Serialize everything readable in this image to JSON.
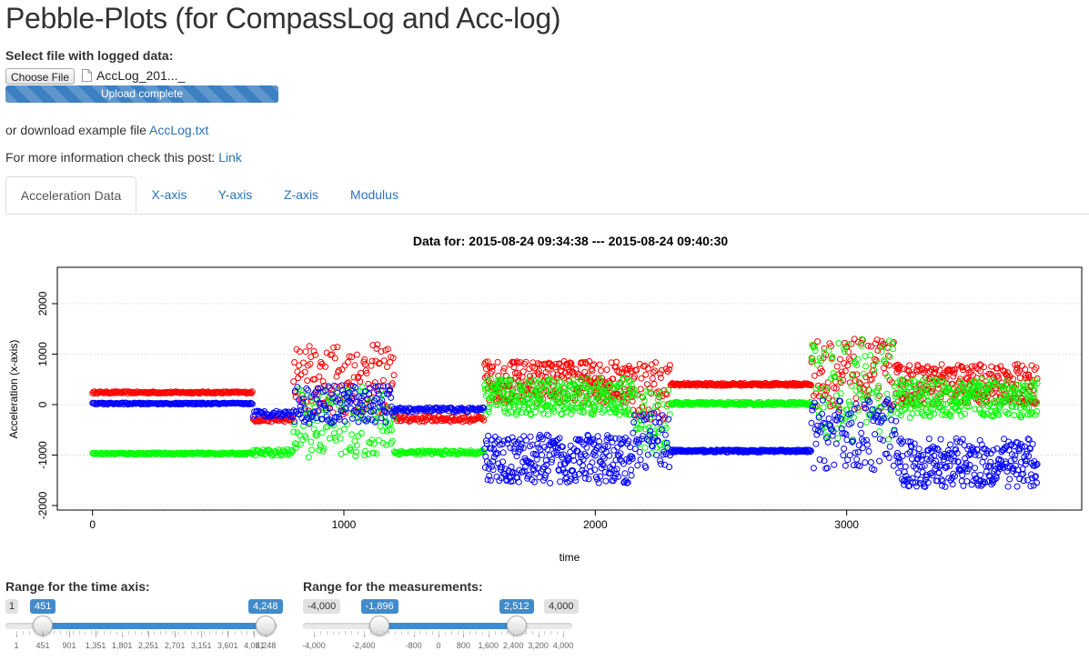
{
  "page": {
    "title": "Pebble-Plots (for CompassLog and Acc-log)",
    "file_label": "Select file with logged data:",
    "choose_button": "Choose File",
    "file_name": "AccLog_201..._",
    "progress_text": "Upload complete",
    "progress_fraction": 1.0,
    "download_prefix": "or download example file ",
    "download_link": "AccLog.txt",
    "info_prefix": "For more information check this post: ",
    "info_link": "Link"
  },
  "tabs": [
    {
      "label": "Acceleration Data",
      "active": true
    },
    {
      "label": "X-axis",
      "active": false
    },
    {
      "label": "Y-axis",
      "active": false
    },
    {
      "label": "Z-axis",
      "active": false
    },
    {
      "label": "Modulus",
      "active": false
    }
  ],
  "chart_data": {
    "type": "scatter",
    "title": "Data for: 2015-08-24 09:34:38 --- 2015-08-24 09:40:30",
    "xlabel": "time",
    "ylabel": "Acceleration (x-axis)",
    "xlim": [
      -140,
      3935
    ],
    "ylim": [
      -2090,
      2720
    ],
    "xticks": [
      0,
      1000,
      2000,
      3000
    ],
    "yticks": [
      -2000,
      -1000,
      0,
      1000,
      2000
    ],
    "grid": true,
    "series": [
      {
        "color": "#ff0000",
        "segments": [
          {
            "x": [
              0,
              640
            ],
            "y": [
              240,
              240
            ],
            "spread": 18,
            "step": 4
          },
          {
            "x": [
              640,
              800
            ],
            "y": [
              -300,
              -300
            ],
            "spread": 40,
            "step": 4
          },
          {
            "x": [
              800,
              1200
            ],
            "y": [
              500,
              500
            ],
            "spread": 700,
            "step": 3
          },
          {
            "x": [
              1200,
              1560
            ],
            "y": [
              -280,
              -280
            ],
            "spread": 60,
            "step": 4
          },
          {
            "x": [
              1560,
              2150
            ],
            "y": [
              450,
              450
            ],
            "spread": 420,
            "step": 2
          },
          {
            "x": [
              2150,
              2300
            ],
            "y": [
              300,
              300
            ],
            "spread": 600,
            "step": 3
          },
          {
            "x": [
              2300,
              2860
            ],
            "y": [
              400,
              400
            ],
            "spread": 25,
            "step": 3
          },
          {
            "x": [
              2860,
              3200
            ],
            "y": [
              600,
              600
            ],
            "spread": 700,
            "step": 3
          },
          {
            "x": [
              3200,
              3760
            ],
            "y": [
              400,
              400
            ],
            "spread": 400,
            "step": 2
          }
        ]
      },
      {
        "color": "#00ff00",
        "segments": [
          {
            "x": [
              0,
              640
            ],
            "y": [
              -970,
              -970
            ],
            "spread": 18,
            "step": 4
          },
          {
            "x": [
              640,
              800
            ],
            "y": [
              -950,
              -950
            ],
            "spread": 60,
            "step": 4
          },
          {
            "x": [
              800,
              1200
            ],
            "y": [
              -350,
              -350
            ],
            "spread": 700,
            "step": 3
          },
          {
            "x": [
              1200,
              1560
            ],
            "y": [
              -950,
              -950
            ],
            "spread": 40,
            "step": 4
          },
          {
            "x": [
              1560,
              2150
            ],
            "y": [
              150,
              150
            ],
            "spread": 360,
            "step": 2
          },
          {
            "x": [
              2150,
              2300
            ],
            "y": [
              -300,
              -300
            ],
            "spread": 700,
            "step": 3
          },
          {
            "x": [
              2300,
              2860
            ],
            "y": [
              20,
              20
            ],
            "spread": 30,
            "step": 3
          },
          {
            "x": [
              2860,
              3200
            ],
            "y": [
              300,
              300
            ],
            "spread": 1000,
            "step": 3
          },
          {
            "x": [
              3200,
              3760
            ],
            "y": [
              120,
              120
            ],
            "spread": 380,
            "step": 2
          }
        ]
      },
      {
        "color": "#0000ff",
        "segments": [
          {
            "x": [
              0,
              640
            ],
            "y": [
              20,
              20
            ],
            "spread": 15,
            "step": 4
          },
          {
            "x": [
              640,
              800
            ],
            "y": [
              -180,
              -180
            ],
            "spread": 60,
            "step": 4
          },
          {
            "x": [
              800,
              1200
            ],
            "y": [
              0,
              0
            ],
            "spread": 380,
            "step": 3
          },
          {
            "x": [
              1200,
              1560
            ],
            "y": [
              -100,
              -100
            ],
            "spread": 40,
            "step": 4
          },
          {
            "x": [
              1560,
              2150
            ],
            "y": [
              -1080,
              -1080
            ],
            "spread": 480,
            "step": 2
          },
          {
            "x": [
              2150,
              2300
            ],
            "y": [
              -700,
              -700
            ],
            "spread": 550,
            "step": 3
          },
          {
            "x": [
              2300,
              2860
            ],
            "y": [
              -920,
              -920
            ],
            "spread": 25,
            "step": 3
          },
          {
            "x": [
              2860,
              3200
            ],
            "y": [
              -600,
              -600
            ],
            "spread": 700,
            "step": 3
          },
          {
            "x": [
              3200,
              3760
            ],
            "y": [
              -1150,
              -1150
            ],
            "spread": 480,
            "step": 2
          }
        ]
      }
    ]
  },
  "sliders": [
    {
      "title": "Range for the time axis:",
      "min_label": "1",
      "from": "451",
      "to": "4,248",
      "min": 1,
      "max": 4248,
      "from_value": 451,
      "to_value": 4248,
      "tick_labels": [
        "1",
        "451",
        "901",
        "1,351",
        "1,801",
        "2,251",
        "2,701",
        "3,151",
        "3,601",
        "4,051",
        "4,248"
      ],
      "tick_values": [
        1,
        451,
        901,
        1351,
        1801,
        2251,
        2701,
        3151,
        3601,
        4051,
        4248
      ]
    },
    {
      "title": "Range for the measurements:",
      "min_label": "-4,000",
      "max_label": "4,000",
      "from": "-1,896",
      "to": "2,512",
      "min": -4000,
      "max": 4000,
      "from_value": -1896,
      "to_value": 2512,
      "tick_labels": [
        "-4,000",
        "-2,400",
        "-800",
        "0",
        "800",
        "1,600",
        "2,400",
        "3,200",
        "4,000"
      ],
      "tick_values": [
        -4000,
        -2400,
        -800,
        0,
        800,
        1600,
        2400,
        3200,
        4000
      ]
    }
  ]
}
